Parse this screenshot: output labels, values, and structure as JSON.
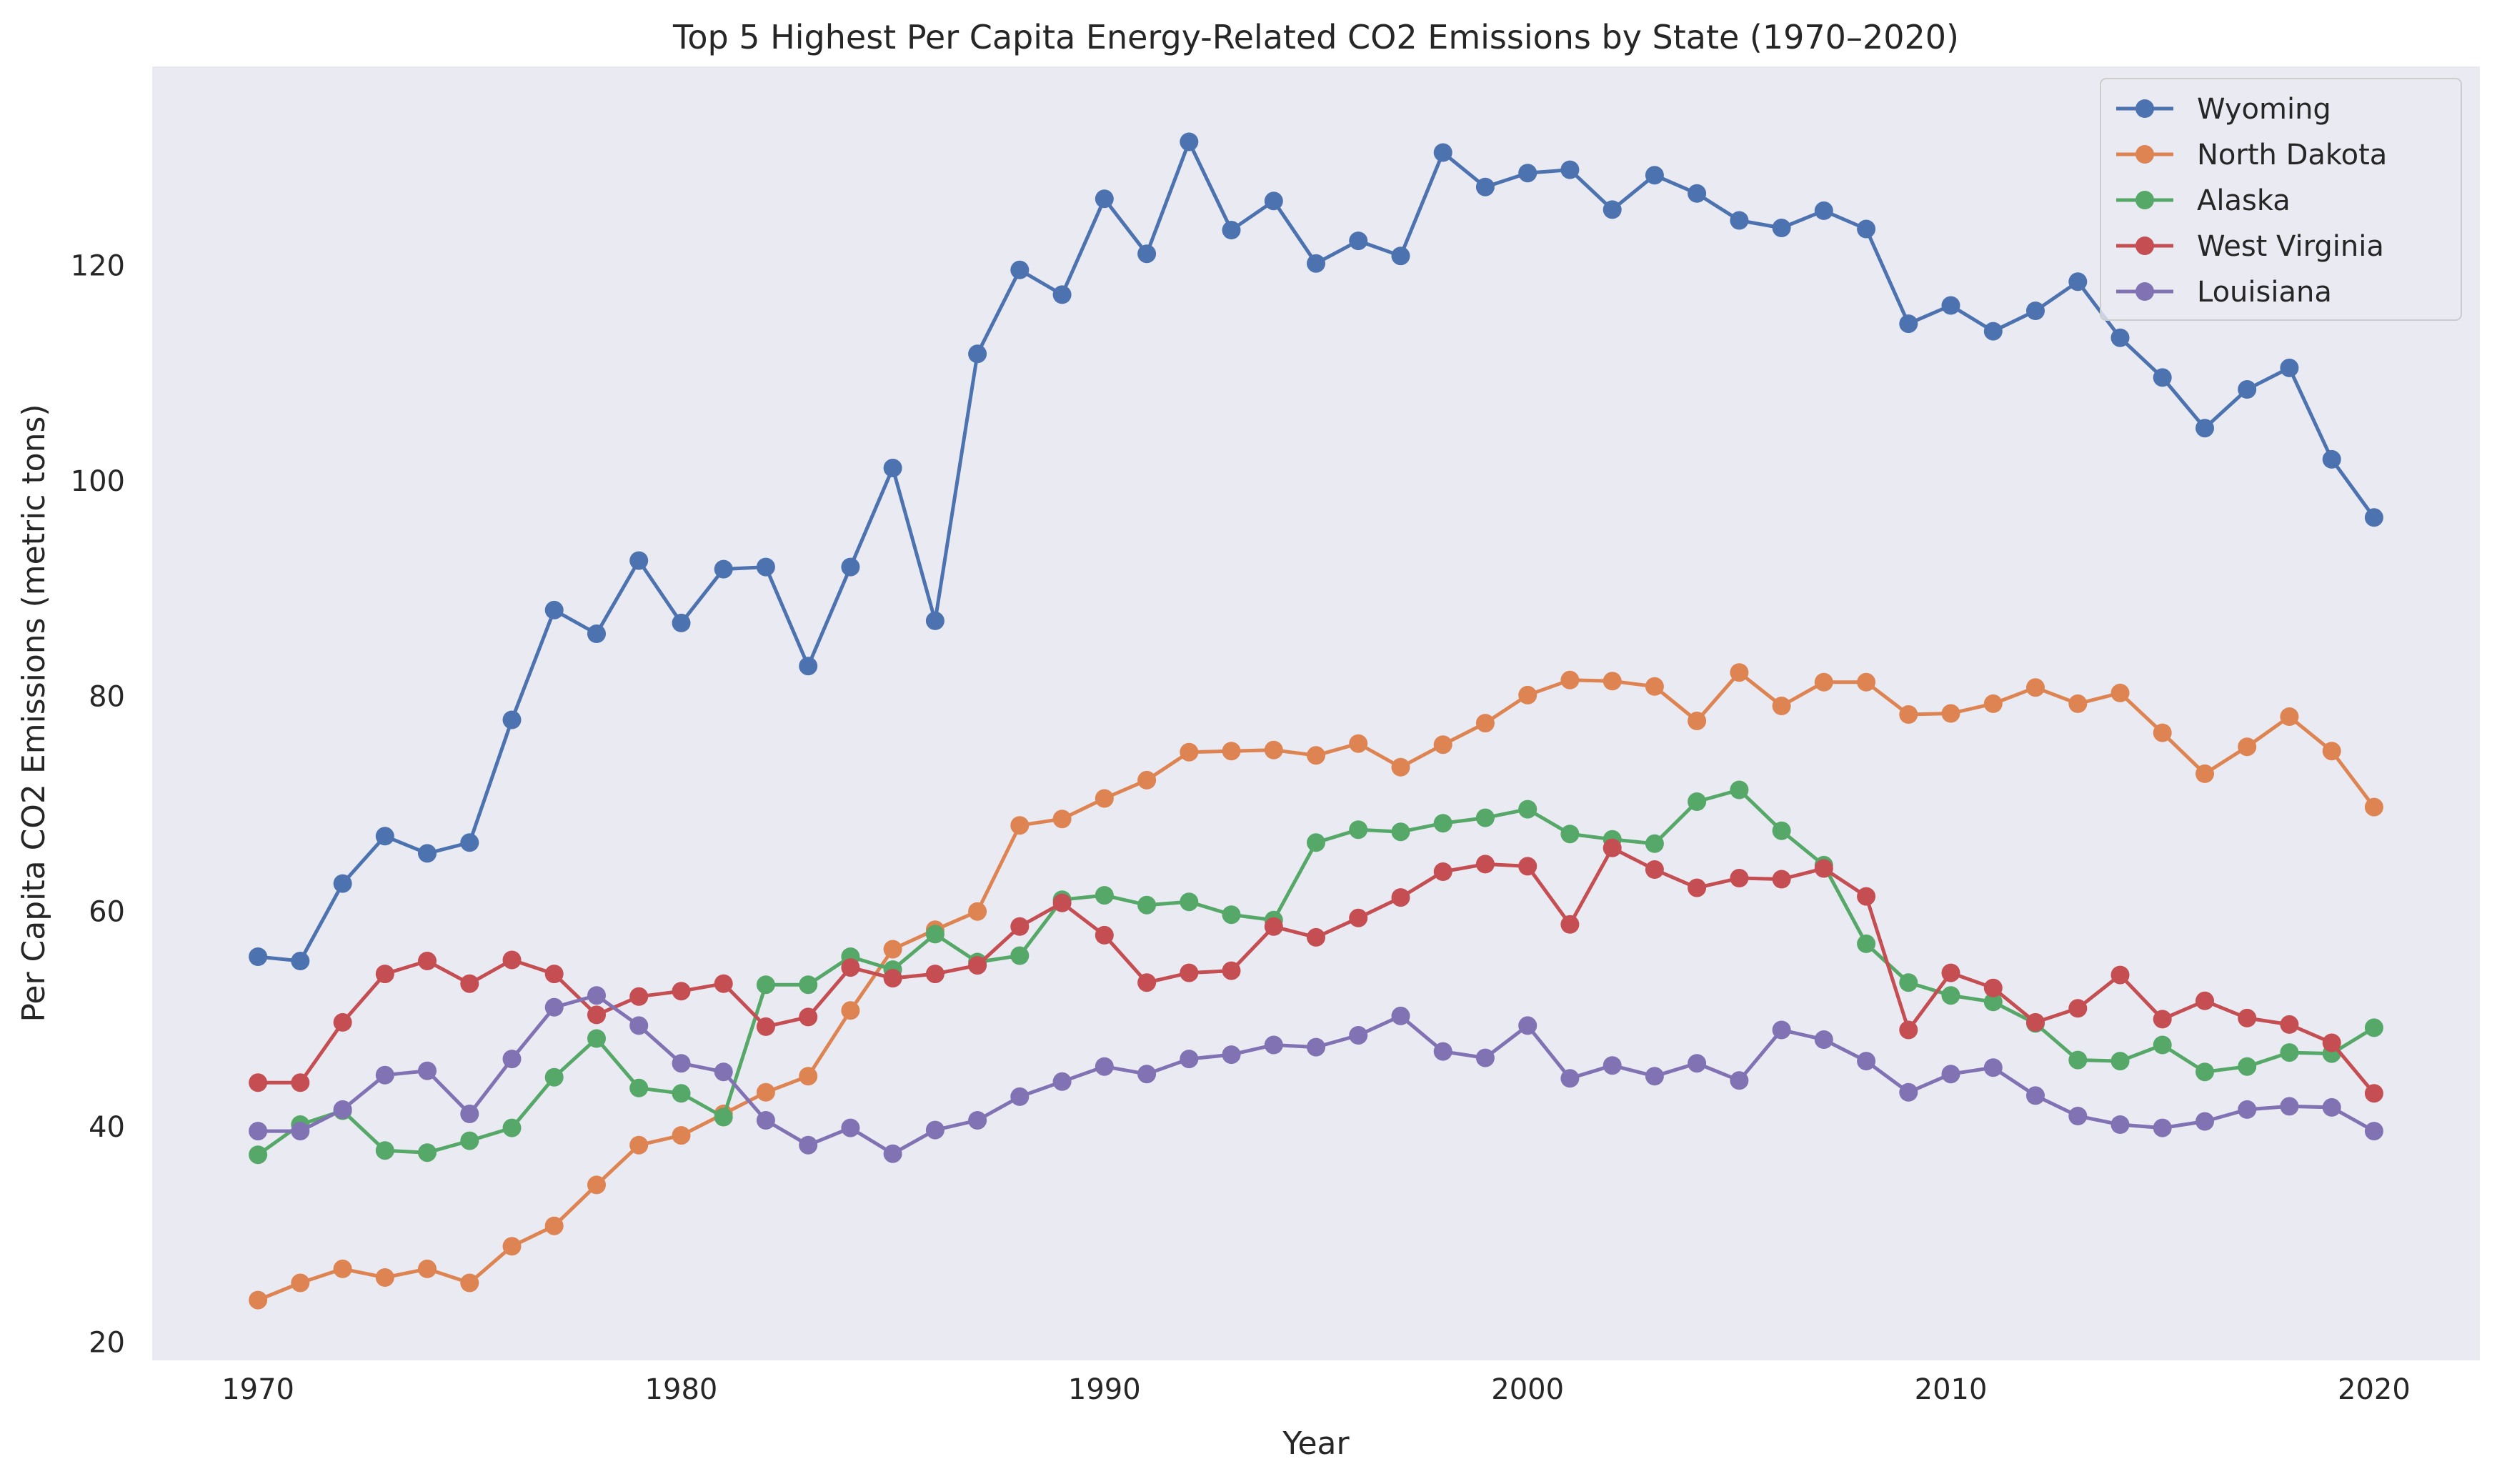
{
  "chart_data": {
    "type": "line",
    "title": "Top 5 Highest Per Capita Energy-Related CO2 Emissions by State (1970–2020)",
    "xlabel": "Year",
    "ylabel": "Per Capita CO2 Emissions (metric tons)",
    "xlim": [
      1967.5,
      2022.5
    ],
    "ylim": [
      18.3,
      138.5
    ],
    "x_ticks": [
      1970,
      1980,
      1990,
      2000,
      2010,
      2020
    ],
    "y_ticks": [
      20,
      40,
      60,
      80,
      100,
      120
    ],
    "grid": false,
    "legend": "top-right",
    "marker": "circle",
    "x": [
      1970,
      1971,
      1972,
      1973,
      1974,
      1975,
      1976,
      1977,
      1978,
      1979,
      1980,
      1981,
      1982,
      1983,
      1984,
      1985,
      1986,
      1987,
      1988,
      1989,
      1990,
      1991,
      1992,
      1993,
      1994,
      1995,
      1996,
      1997,
      1998,
      1999,
      2000,
      2001,
      2002,
      2003,
      2004,
      2005,
      2006,
      2007,
      2008,
      2009,
      2010,
      2011,
      2012,
      2013,
      2014,
      2015,
      2016,
      2017,
      2018,
      2019,
      2020
    ],
    "series": [
      {
        "name": "Wyoming",
        "color": "#4c72b0",
        "values": [
          55.8,
          55.4,
          62.6,
          67.0,
          65.4,
          66.4,
          77.8,
          88.0,
          85.8,
          92.6,
          86.8,
          91.8,
          92.0,
          82.8,
          92.0,
          101.2,
          87.0,
          111.8,
          119.6,
          117.3,
          126.2,
          121.1,
          131.5,
          123.3,
          126.0,
          120.2,
          122.3,
          120.9,
          130.5,
          127.3,
          128.6,
          128.9,
          125.2,
          128.4,
          126.7,
          124.2,
          123.5,
          125.1,
          123.4,
          114.6,
          116.3,
          113.9,
          115.8,
          118.5,
          113.3,
          109.6,
          104.9,
          108.5,
          110.5,
          102.0,
          96.6
        ]
      },
      {
        "name": "North Dakota",
        "color": "#dd8452",
        "values": [
          23.9,
          25.5,
          26.8,
          26.0,
          26.8,
          25.5,
          28.9,
          30.8,
          34.6,
          38.3,
          39.2,
          41.2,
          43.2,
          44.7,
          50.8,
          56.5,
          58.3,
          60.0,
          68.0,
          68.6,
          70.5,
          72.2,
          74.8,
          74.9,
          75.0,
          74.5,
          75.6,
          73.4,
          75.5,
          77.5,
          80.1,
          81.5,
          81.4,
          80.9,
          77.7,
          82.2,
          79.1,
          81.3,
          81.3,
          78.3,
          78.4,
          79.3,
          80.8,
          79.3,
          80.3,
          76.6,
          72.8,
          75.3,
          78.1,
          74.9,
          69.7
        ]
      },
      {
        "name": "Alaska",
        "color": "#55a868",
        "values": [
          37.4,
          40.2,
          41.5,
          37.8,
          37.6,
          38.7,
          39.9,
          44.6,
          48.2,
          43.6,
          43.1,
          40.9,
          53.2,
          53.2,
          55.8,
          54.6,
          57.9,
          55.3,
          55.9,
          61.1,
          61.5,
          60.6,
          60.9,
          59.7,
          59.2,
          66.4,
          67.6,
          67.4,
          68.2,
          68.7,
          69.5,
          67.2,
          66.7,
          66.3,
          70.2,
          71.3,
          67.5,
          64.3,
          57.0,
          53.4,
          52.2,
          51.6,
          49.6,
          46.2,
          46.1,
          47.6,
          45.1,
          45.6,
          46.9,
          46.8,
          49.2
        ]
      },
      {
        "name": "West Virginia",
        "color": "#c44e52",
        "values": [
          44.1,
          44.1,
          49.7,
          54.2,
          55.4,
          53.3,
          55.5,
          54.2,
          50.4,
          52.1,
          52.6,
          53.3,
          49.3,
          50.2,
          54.8,
          53.8,
          54.2,
          55.0,
          58.6,
          60.8,
          57.8,
          53.4,
          54.3,
          54.5,
          58.6,
          57.6,
          59.4,
          61.3,
          63.7,
          64.4,
          64.2,
          58.8,
          65.9,
          63.9,
          62.2,
          63.1,
          63.0,
          64.0,
          61.4,
          49.0,
          54.3,
          52.9,
          49.7,
          51.0,
          54.1,
          50.0,
          51.7,
          50.1,
          49.5,
          47.8,
          43.1
        ]
      },
      {
        "name": "Louisiana",
        "color": "#8172b3",
        "values": [
          39.6,
          39.6,
          41.6,
          44.8,
          45.2,
          41.2,
          46.3,
          51.1,
          52.2,
          49.4,
          45.9,
          45.1,
          40.6,
          38.3,
          39.9,
          37.5,
          39.7,
          40.6,
          42.8,
          44.2,
          45.6,
          44.9,
          46.3,
          46.7,
          47.6,
          47.4,
          48.5,
          50.3,
          47.0,
          46.4,
          49.4,
          44.5,
          45.7,
          44.7,
          45.9,
          44.3,
          49.0,
          48.1,
          46.1,
          43.2,
          44.9,
          45.5,
          42.9,
          41.0,
          40.2,
          39.9,
          40.5,
          41.6,
          41.9,
          41.8,
          39.6
        ]
      }
    ]
  }
}
